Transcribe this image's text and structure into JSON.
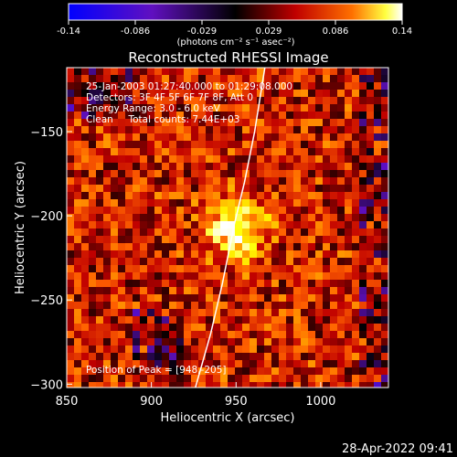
{
  "colorbar": {
    "ticks": [
      "-0.14",
      "-0.086",
      "-0.029",
      "0.029",
      "0.086",
      "0.14"
    ],
    "units_html": "(photons cm⁻² s⁻¹ asec⁻²)"
  },
  "chart_data": {
    "type": "heatmap",
    "title": "Reconstructed RHESSI Image",
    "xlabel": "Heliocentric X (arcsec)",
    "ylabel": "Heliocentric Y (arcsec)",
    "xlim": [
      850,
      1040
    ],
    "ylim": [
      -302,
      -112
    ],
    "x_ticks": [
      850,
      900,
      950,
      1000
    ],
    "y_ticks": [
      -150,
      -200,
      -250,
      -300
    ],
    "colorbar_range": [
      -0.14,
      0.14
    ],
    "colormap": [
      "#0000ff",
      "#6010c0",
      "#000000",
      "#c00000",
      "#ff6000",
      "#ffff00",
      "#ffffff"
    ],
    "peak": {
      "x": 948,
      "y": -205
    },
    "limb_curve": [
      [
        926,
        -302
      ],
      [
        935,
        -270
      ],
      [
        942,
        -240
      ],
      [
        949,
        -205
      ],
      [
        955,
        -180
      ],
      [
        961,
        -150
      ],
      [
        967,
        -112
      ]
    ],
    "annotations": [
      "25-Jan-2003 01:27:40.000 to 01:29:08.000",
      "Detectors: 3F 4F 5F 6F 7F 8F, Att 0",
      "Energy Range: 3.0 - 6.0 keV",
      "Clean     Total counts: 7.44E+03"
    ],
    "peak_label": "Position of Peak = [948,-205]"
  },
  "timestamp": "28-Apr-2022 09:41"
}
